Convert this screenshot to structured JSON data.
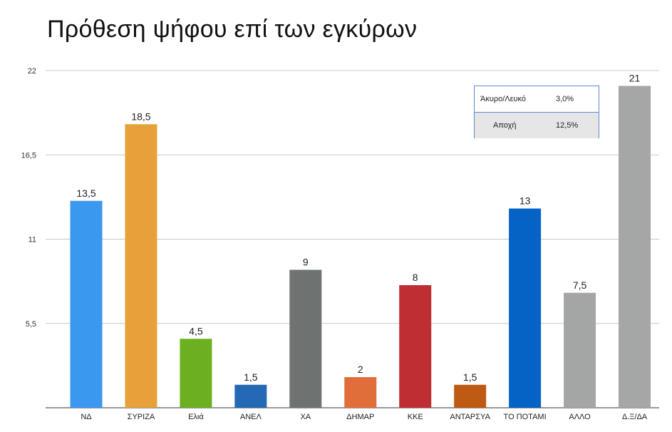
{
  "title": "Πρόθεση ψήφου επί των εγκύρων",
  "chart_data": {
    "type": "bar",
    "title": "Πρόθεση ψήφου επί των εγκύρων",
    "xlabel": "",
    "ylabel": "",
    "ylim": [
      0,
      22
    ],
    "yticks": [
      "5,5",
      "11",
      "16,5",
      "22"
    ],
    "ytick_values": [
      5.5,
      11,
      16.5,
      22
    ],
    "grid": true,
    "categories": [
      "ΝΔ",
      "ΣΥΡΙΖΑ",
      "Ελιά",
      "ΑΝΕΛ",
      "ΧΑ",
      "ΔΗΜΑΡ",
      "ΚΚΕ",
      "ΑΝΤΑΡΣΥΑ",
      "ΤΟ ΠΟΤΑΜΙ",
      "ΑΛΛΟ",
      "Δ.Ξ/ΔΑ"
    ],
    "values": [
      13.5,
      18.5,
      4.5,
      1.5,
      9,
      2,
      8,
      1.5,
      13,
      7.5,
      21
    ],
    "value_labels": [
      "13,5",
      "18,5",
      "4,5",
      "1,5",
      "9",
      "2",
      "8",
      "1,5",
      "13",
      "7,5",
      "21"
    ],
    "colors": [
      "#3a98ee",
      "#e8a13a",
      "#6bb021",
      "#2469b3",
      "#6e7372",
      "#e06e3a",
      "#be2e33",
      "#bf5a14",
      "#0563c6",
      "#a3a6a5",
      "#a4a7a6"
    ]
  },
  "legend_table": {
    "rows": [
      {
        "label": "Άκυρο/Λευκό",
        "value": "3,0%"
      },
      {
        "label": "Αποχή",
        "value": "12,5%"
      }
    ]
  }
}
